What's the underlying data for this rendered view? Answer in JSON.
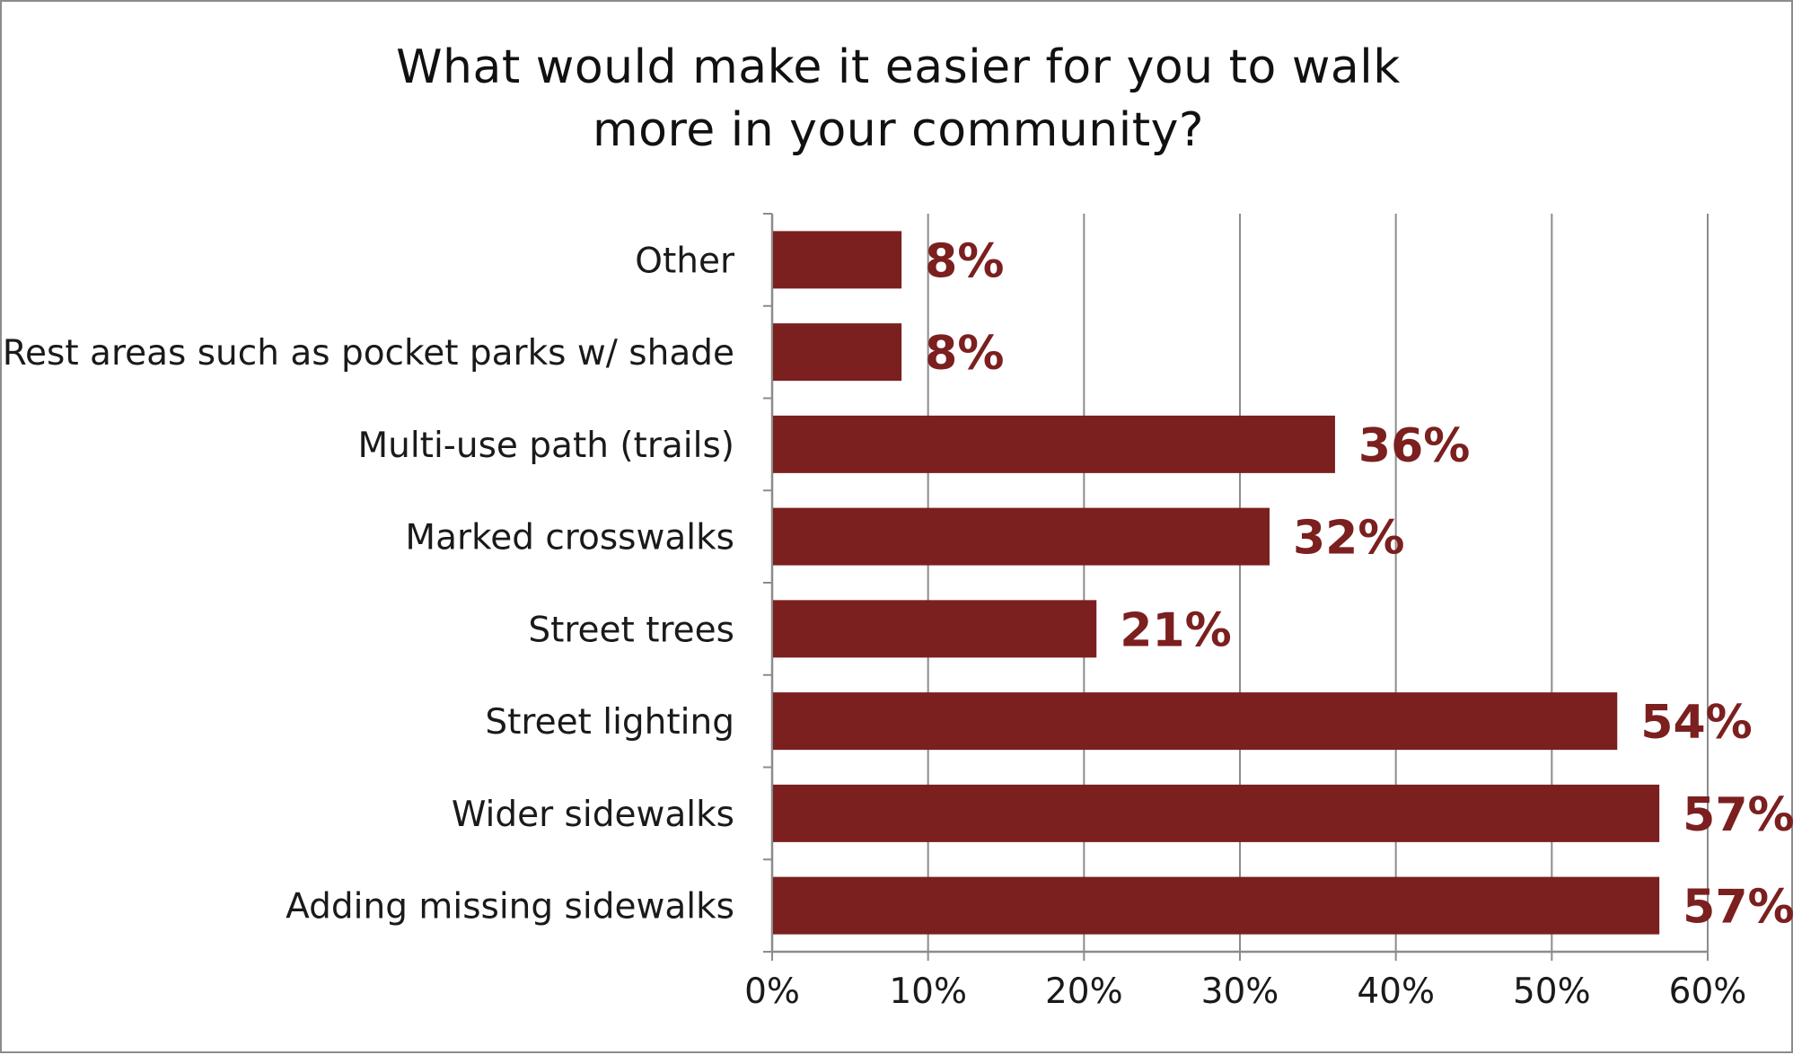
{
  "chart_data": {
    "type": "bar",
    "orientation": "horizontal",
    "title": "What would make it easier for you to walk more in your community?",
    "title_lines": [
      "What would make it easier for you to walk",
      "more in your community?"
    ],
    "categories": [
      "Other",
      "Rest areas such as pocket parks w/ shade",
      "Multi-use path (trails)",
      "Marked crosswalks",
      "Street trees",
      "Street lighting",
      "Wider sidewalks",
      "Adding missing sidewalks"
    ],
    "values": [
      8.3,
      8.3,
      36.1,
      31.9,
      20.8,
      54.2,
      56.9,
      56.9
    ],
    "data_labels": [
      "8%",
      "8%",
      "36%",
      "32%",
      "21%",
      "54%",
      "57%",
      "57%"
    ],
    "xlim": [
      0,
      60
    ],
    "x_ticks": [
      0,
      10,
      20,
      30,
      40,
      50,
      60
    ],
    "x_tick_labels": [
      "0%",
      "10%",
      "20%",
      "30%",
      "40%",
      "50%",
      "60%"
    ],
    "xlabel": "",
    "ylabel": "",
    "grid": "vertical",
    "legend": "none",
    "bar_color": "#7b1f1f",
    "label_color": "#7b1f1f",
    "grid_color": "#8c8c8c"
  }
}
